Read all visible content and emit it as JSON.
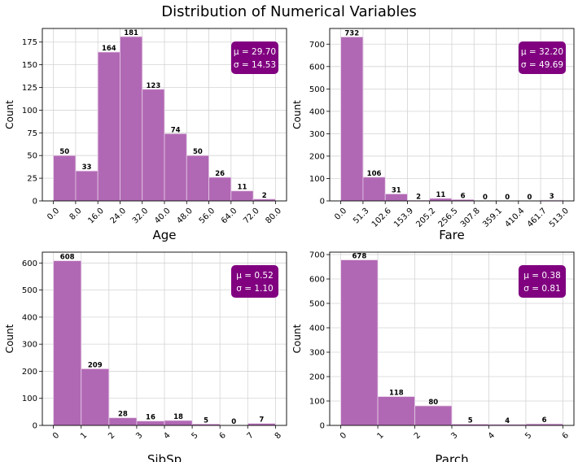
{
  "figure_title": "Distribution of Numerical Variables",
  "colors": {
    "bar_fill": "#b168b4",
    "bar_stroke": "#e6cde7",
    "stats_box": "#800080",
    "stats_text": "#ffffff",
    "grid": "#d4d4d4"
  },
  "chart_data": [
    {
      "type": "bar",
      "xlabel": "Age",
      "ylabel": "Count",
      "edges": [
        0,
        8,
        16,
        24,
        32,
        40,
        48,
        56,
        64,
        72,
        80
      ],
      "tick_labels": [
        "0.0",
        "8.0",
        "16.0",
        "24.0",
        "32.0",
        "40.0",
        "48.0",
        "56.0",
        "64.0",
        "72.0",
        "80.0"
      ],
      "values": [
        50,
        33,
        164,
        181,
        123,
        74,
        50,
        26,
        11,
        2
      ],
      "ylim": [
        0,
        190
      ],
      "yticks": [
        0,
        25,
        50,
        75,
        100,
        125,
        150,
        175
      ],
      "xlim": [
        -4,
        84
      ],
      "mean_label": "μ = 29.70",
      "std_label": "σ = 14.53",
      "grid": true
    },
    {
      "type": "bar",
      "xlabel": "Fare",
      "ylabel": "Count",
      "edges": [
        0,
        51.3,
        102.6,
        153.9,
        205.2,
        256.5,
        307.8,
        359.1,
        410.4,
        461.7,
        513.0
      ],
      "tick_labels": [
        "0.0",
        "51.3",
        "102.6",
        "153.9",
        "205.2",
        "256.5",
        "307.8",
        "359.1",
        "410.4",
        "461.7",
        "513.0"
      ],
      "values": [
        732,
        106,
        31,
        2,
        11,
        6,
        0,
        0,
        0,
        3
      ],
      "ylim": [
        0,
        770
      ],
      "yticks": [
        0,
        100,
        200,
        300,
        400,
        500,
        600,
        700
      ],
      "xlim": [
        -25.65,
        538.65
      ],
      "mean_label": "μ = 32.20",
      "std_label": "σ = 49.69",
      "grid": true
    },
    {
      "type": "bar",
      "xlabel": "SibSp",
      "ylabel": "Count",
      "edges": [
        0,
        1,
        2,
        3,
        4,
        5,
        6,
        7,
        8
      ],
      "tick_labels": [
        "0",
        "1",
        "2",
        "3",
        "4",
        "5",
        "6",
        "7",
        "8"
      ],
      "bars": [
        {
          "x0": 0,
          "x1": 1,
          "value": 608
        },
        {
          "x0": 1,
          "x1": 2,
          "value": 209
        },
        {
          "x0": 2,
          "x1": 3,
          "value": 28
        },
        {
          "x0": 3,
          "x1": 4,
          "value": 16
        },
        {
          "x0": 4,
          "x1": 5,
          "value": 18
        },
        {
          "x0": 5,
          "x1": 6,
          "value": 5
        },
        {
          "x0": 6,
          "x1": 7,
          "value": 0
        },
        {
          "x0": 7,
          "x1": 8,
          "value": 7
        }
      ],
      "ylim": [
        0,
        640
      ],
      "yticks": [
        0,
        100,
        200,
        300,
        400,
        500,
        600
      ],
      "xlim": [
        -0.4,
        8.4
      ],
      "mean_label": "μ = 0.52",
      "std_label": "σ = 1.10",
      "grid": true
    },
    {
      "type": "bar",
      "xlabel": "Parch",
      "ylabel": "Count",
      "edges": [
        0,
        1,
        2,
        3,
        4,
        5,
        6
      ],
      "tick_labels": [
        "0",
        "1",
        "2",
        "3",
        "4",
        "5",
        "6"
      ],
      "bars": [
        {
          "x0": 0,
          "x1": 1,
          "value": 678
        },
        {
          "x0": 1,
          "x1": 2,
          "value": 118
        },
        {
          "x0": 2,
          "x1": 3,
          "value": 80
        },
        {
          "x0": 3,
          "x1": 4,
          "value": 5
        },
        {
          "x0": 4,
          "x1": 5,
          "value": 4
        },
        {
          "x0": 5,
          "x1": 6,
          "value": 6
        }
      ],
      "ylim": [
        0,
        710
      ],
      "yticks": [
        0,
        100,
        200,
        300,
        400,
        500,
        600,
        700
      ],
      "xlim": [
        -0.3,
        6.3
      ],
      "mean_label": "μ = 0.38",
      "std_label": "σ = 0.81",
      "grid": true
    }
  ]
}
